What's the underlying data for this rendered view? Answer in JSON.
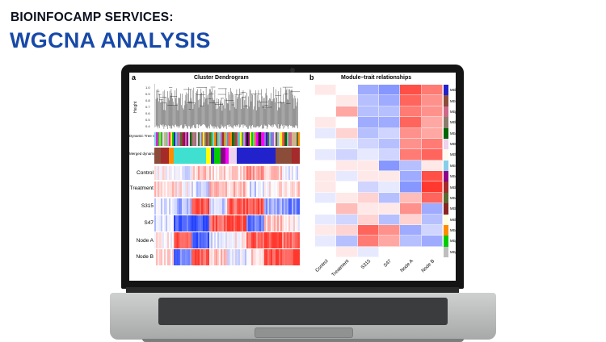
{
  "header": {
    "kicker": "BIOINFOCAMP SERVICES:",
    "headline": "WGCNA ANALYSIS"
  },
  "panel_a": {
    "tag": "a",
    "title": "Cluster Dendrogram",
    "ylabel": "Height",
    "height_ticks": [
      "0.4",
      "0.5",
      "0.6",
      "0.7",
      "0.8",
      "0.9",
      "1.0"
    ],
    "row_labels": [
      "Dynamic Tree Cut",
      "Merged dynamic",
      "Control",
      "Treatment",
      "S315",
      "S47",
      "Node A",
      "Node B"
    ]
  },
  "panel_b": {
    "tag": "b",
    "title": "Module–trait relationships",
    "columns": [
      "Control",
      "Treatment",
      "S315",
      "S47",
      "Node A",
      "Node B"
    ],
    "modules": [
      {
        "name": "MEblue",
        "color": "#2222cc"
      },
      {
        "name": "MEsalmon4",
        "color": "#8b4c39"
      },
      {
        "name": "MEpalevioletred3",
        "color": "#cd6889"
      },
      {
        "name": "MEbisque4",
        "color": "#8b7d6b"
      },
      {
        "name": "MEdarkgreen",
        "color": "#006400"
      },
      {
        "name": "MEthistle2",
        "color": "#eed2ee"
      },
      {
        "name": "MEfloralwhite",
        "color": "#fffaf0"
      },
      {
        "name": "MEskyblue",
        "color": "#87ceeb"
      },
      {
        "name": "MEdarkmagenta",
        "color": "#8b008b"
      },
      {
        "name": "MEbrown",
        "color": "#a52a2a"
      },
      {
        "name": "MEdarkolivegreen",
        "color": "#556b2f"
      },
      {
        "name": "MEbrown4",
        "color": "#8b2323"
      },
      {
        "name": "MElightyellow",
        "color": "#ffffe0"
      },
      {
        "name": "MEdarkorange",
        "color": "#ff8c00"
      },
      {
        "name": "MEgreen",
        "color": "#00cc00"
      },
      {
        "name": "MEgrey",
        "color": "#bebebe"
      }
    ],
    "heatmap": [
      [
        0.1,
        0.0,
        -0.4,
        -0.5,
        0.8,
        0.6
      ],
      [
        0.0,
        0.1,
        -0.3,
        -0.4,
        0.7,
        0.5
      ],
      [
        0.0,
        0.4,
        -0.3,
        -0.3,
        0.6,
        0.5
      ],
      [
        0.1,
        0.0,
        -0.4,
        -0.4,
        0.7,
        0.4
      ],
      [
        -0.1,
        0.2,
        -0.3,
        -0.2,
        0.5,
        0.4
      ],
      [
        0.0,
        -0.1,
        -0.2,
        -0.3,
        0.5,
        0.6
      ],
      [
        -0.1,
        -0.2,
        -0.1,
        -0.2,
        0.6,
        0.7
      ],
      [
        0.0,
        0.1,
        0.1,
        -0.5,
        -0.3,
        0.1
      ],
      [
        0.1,
        -0.1,
        0.1,
        0.1,
        -0.4,
        0.8
      ],
      [
        0.1,
        0.0,
        -0.2,
        -0.1,
        -0.5,
        0.9
      ],
      [
        -0.1,
        0.1,
        0.2,
        -0.3,
        0.3,
        0.7
      ],
      [
        0.0,
        0.3,
        0.1,
        0.1,
        0.5,
        -0.4
      ],
      [
        -0.1,
        -0.2,
        0.2,
        -0.3,
        0.2,
        -0.3
      ],
      [
        0.1,
        0.2,
        0.7,
        0.5,
        -0.4,
        -0.2
      ],
      [
        -0.1,
        -0.3,
        0.6,
        0.4,
        -0.3,
        -0.4
      ],
      [
        0.0,
        0.1,
        -0.1,
        0.0,
        0.0,
        0.0
      ]
    ]
  }
}
